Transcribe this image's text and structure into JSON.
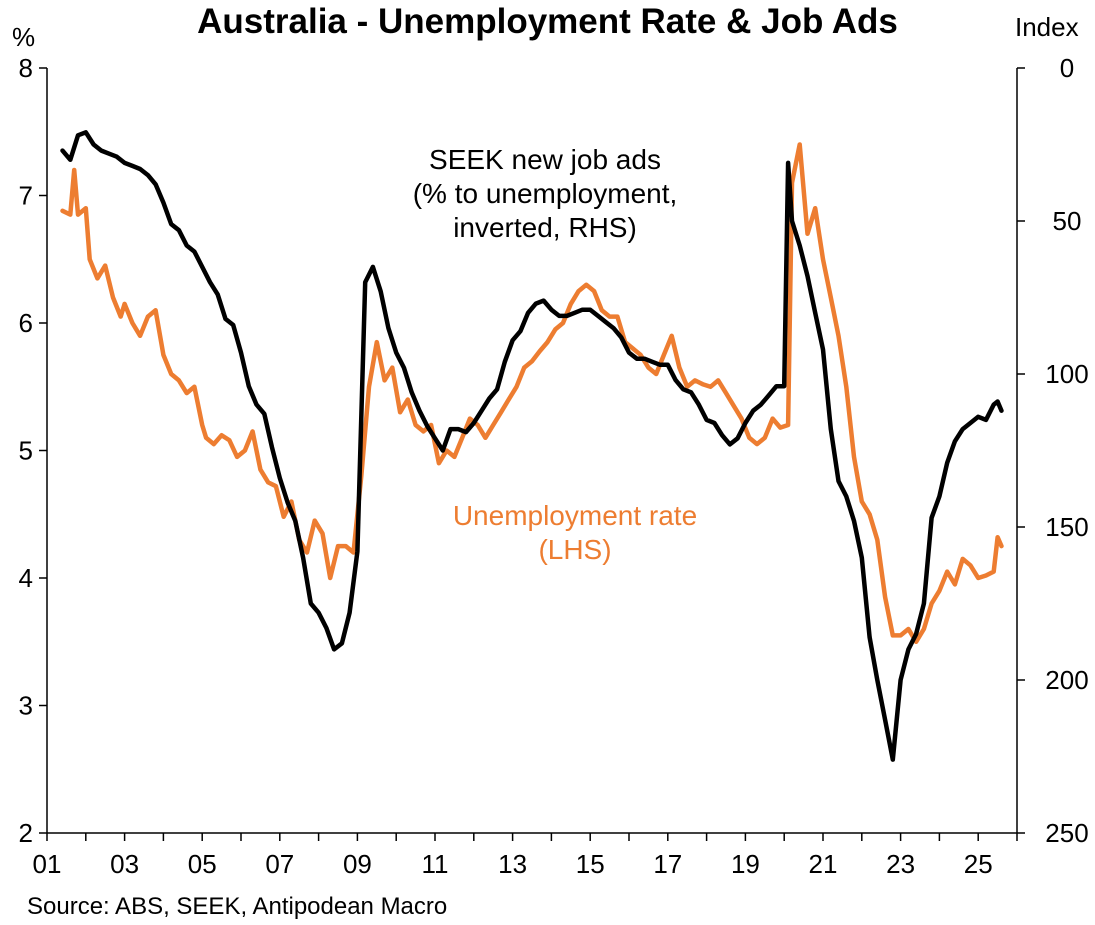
{
  "chart_data": {
    "type": "line",
    "title": "Australia - Unemployment Rate & Job Ads",
    "y_left_label": "%",
    "y_right_label": "Index",
    "source": "Source: ABS, SEEK, Antipodean Macro",
    "x_ticks": [
      "01",
      "03",
      "05",
      "07",
      "09",
      "11",
      "13",
      "15",
      "17",
      "19",
      "21",
      "23",
      "25"
    ],
    "x_tick_years": [
      2001,
      2003,
      2005,
      2007,
      2009,
      2011,
      2013,
      2015,
      2017,
      2019,
      2021,
      2023,
      2025
    ],
    "xlim": [
      2001,
      2026
    ],
    "y_left_ticks": [
      "8",
      "7",
      "6",
      "5",
      "4",
      "3",
      "2"
    ],
    "y_left_tick_values": [
      8,
      7,
      6,
      5,
      4,
      3,
      2
    ],
    "ylim_left": [
      2,
      8
    ],
    "y_right_ticks": [
      "0",
      "50",
      "100",
      "150",
      "200",
      "250"
    ],
    "y_right_tick_values": [
      0,
      50,
      100,
      150,
      200,
      250
    ],
    "ylim_right": [
      0,
      250
    ],
    "y_right_inverted": true,
    "grid": false,
    "series": [
      {
        "axis": "left",
        "color": "#ed7d31",
        "x": [
          2001.4,
          2001.6,
          2001.7,
          2001.8,
          2002.0,
          2002.1,
          2002.3,
          2002.5,
          2002.7,
          2002.9,
          2003.0,
          2003.2,
          2003.4,
          2003.6,
          2003.8,
          2004.0,
          2004.2,
          2004.4,
          2004.6,
          2004.8,
          2005.0,
          2005.1,
          2005.3,
          2005.5,
          2005.7,
          2005.9,
          2006.1,
          2006.3,
          2006.5,
          2006.7,
          2006.9,
          2007.1,
          2007.3,
          2007.5,
          2007.7,
          2007.9,
          2008.1,
          2008.3,
          2008.5,
          2008.7,
          2008.9,
          2009.1,
          2009.3,
          2009.5,
          2009.7,
          2009.9,
          2010.1,
          2010.3,
          2010.5,
          2010.7,
          2010.9,
          2011.1,
          2011.3,
          2011.5,
          2011.7,
          2011.9,
          2012.1,
          2012.3,
          2012.5,
          2012.7,
          2012.9,
          2013.1,
          2013.3,
          2013.5,
          2013.7,
          2013.9,
          2014.1,
          2014.3,
          2014.5,
          2014.7,
          2014.9,
          2015.1,
          2015.3,
          2015.5,
          2015.7,
          2015.9,
          2016.1,
          2016.3,
          2016.5,
          2016.7,
          2016.9,
          2017.1,
          2017.3,
          2017.5,
          2017.7,
          2017.9,
          2018.1,
          2018.3,
          2018.5,
          2018.7,
          2018.9,
          2019.1,
          2019.3,
          2019.5,
          2019.7,
          2019.9,
          2020.1,
          2020.2,
          2020.4,
          2020.6,
          2020.8,
          2021.0,
          2021.2,
          2021.4,
          2021.6,
          2021.8,
          2022.0,
          2022.2,
          2022.4,
          2022.6,
          2022.8,
          2023.0,
          2023.2,
          2023.4,
          2023.6,
          2023.8,
          2024.0,
          2024.2,
          2024.4,
          2024.6,
          2024.8,
          2025.0,
          2025.2,
          2025.4,
          2025.5,
          2025.6
        ],
        "y": [
          6.88,
          6.85,
          7.2,
          6.85,
          6.9,
          6.5,
          6.35,
          6.45,
          6.2,
          6.05,
          6.15,
          6.0,
          5.9,
          6.05,
          6.1,
          5.75,
          5.6,
          5.55,
          5.45,
          5.5,
          5.2,
          5.1,
          5.05,
          5.12,
          5.08,
          4.95,
          5.0,
          5.15,
          4.85,
          4.75,
          4.72,
          4.48,
          4.6,
          4.3,
          4.2,
          4.45,
          4.35,
          4.0,
          4.25,
          4.25,
          4.2,
          4.8,
          5.5,
          5.85,
          5.55,
          5.65,
          5.3,
          5.4,
          5.2,
          5.15,
          5.2,
          4.9,
          5.0,
          4.95,
          5.1,
          5.25,
          5.2,
          5.1,
          5.2,
          5.3,
          5.4,
          5.5,
          5.65,
          5.7,
          5.78,
          5.85,
          5.95,
          6.0,
          6.15,
          6.25,
          6.3,
          6.25,
          6.1,
          6.05,
          6.05,
          5.85,
          5.8,
          5.75,
          5.65,
          5.6,
          5.75,
          5.9,
          5.65,
          5.5,
          5.55,
          5.52,
          5.5,
          5.55,
          5.45,
          5.35,
          5.25,
          5.1,
          5.05,
          5.1,
          5.25,
          5.18,
          5.2,
          7.1,
          7.4,
          6.7,
          6.9,
          6.5,
          6.2,
          5.9,
          5.5,
          4.95,
          4.6,
          4.5,
          4.3,
          3.85,
          3.55,
          3.55,
          3.6,
          3.5,
          3.6,
          3.8,
          3.9,
          4.05,
          3.95,
          4.15,
          4.1,
          4.0,
          4.02,
          4.05,
          4.32,
          4.25
        ]
      },
      {
        "axis": "right",
        "color": "#000000",
        "x": [
          2001.4,
          2001.6,
          2001.8,
          2002.0,
          2002.2,
          2002.4,
          2002.6,
          2002.8,
          2003.0,
          2003.2,
          2003.4,
          2003.6,
          2003.8,
          2004.0,
          2004.2,
          2004.4,
          2004.6,
          2004.8,
          2005.0,
          2005.2,
          2005.4,
          2005.6,
          2005.8,
          2006.0,
          2006.2,
          2006.4,
          2006.6,
          2006.8,
          2007.0,
          2007.2,
          2007.4,
          2007.6,
          2007.8,
          2008.0,
          2008.2,
          2008.4,
          2008.6,
          2008.8,
          2009.0,
          2009.2,
          2009.4,
          2009.6,
          2009.8,
          2010.0,
          2010.2,
          2010.4,
          2010.6,
          2010.8,
          2011.0,
          2011.2,
          2011.4,
          2011.6,
          2011.8,
          2012.0,
          2012.2,
          2012.4,
          2012.6,
          2012.8,
          2013.0,
          2013.2,
          2013.4,
          2013.6,
          2013.8,
          2014.0,
          2014.2,
          2014.4,
          2014.6,
          2014.8,
          2015.0,
          2015.2,
          2015.4,
          2015.6,
          2015.8,
          2016.0,
          2016.2,
          2016.4,
          2016.6,
          2016.8,
          2017.0,
          2017.2,
          2017.4,
          2017.6,
          2017.8,
          2018.0,
          2018.2,
          2018.4,
          2018.6,
          2018.8,
          2019.0,
          2019.2,
          2019.4,
          2019.6,
          2019.8,
          2020.0,
          2020.1,
          2020.2,
          2020.4,
          2020.6,
          2020.8,
          2021.0,
          2021.2,
          2021.4,
          2021.6,
          2021.8,
          2022.0,
          2022.2,
          2022.4,
          2022.6,
          2022.8,
          2023.0,
          2023.2,
          2023.4,
          2023.6,
          2023.8,
          2024.0,
          2024.2,
          2024.4,
          2024.6,
          2024.8,
          2025.0,
          2025.2,
          2025.4,
          2025.5,
          2025.6
        ],
        "y": [
          27,
          30,
          22,
          21,
          25,
          27,
          28,
          29,
          31,
          32,
          33,
          35,
          38,
          44,
          51,
          53,
          58,
          60,
          65,
          70,
          74,
          82,
          84,
          93,
          104,
          110,
          113,
          124,
          134,
          142,
          148,
          160,
          175,
          178,
          183,
          190,
          188,
          178,
          158,
          70,
          65,
          73,
          85,
          93,
          98,
          106,
          112,
          117,
          121,
          125,
          118,
          118,
          119,
          116,
          112,
          108,
          105,
          96,
          89,
          86,
          80,
          77,
          76,
          79,
          81,
          81,
          80,
          79,
          79,
          81,
          83,
          85,
          88,
          93,
          95,
          95,
          96,
          97,
          97,
          102,
          105,
          106,
          110,
          115,
          116,
          120,
          123,
          121,
          116,
          112,
          110,
          107,
          104,
          104,
          31,
          50,
          58,
          68,
          80,
          92,
          118,
          135,
          140,
          148,
          160,
          186,
          200,
          213,
          226,
          200,
          190,
          185,
          175,
          147,
          140,
          129,
          122,
          118,
          116,
          114,
          115,
          110,
          109,
          112
        ]
      }
    ],
    "annotations": [
      {
        "lines": [
          "SEEK new job ads",
          "(% to unemployment,",
          "inverted, RHS)"
        ],
        "color": "#000000"
      },
      {
        "lines": [
          "Unemployment rate",
          "(LHS)"
        ],
        "color": "#ed7d31"
      }
    ]
  }
}
